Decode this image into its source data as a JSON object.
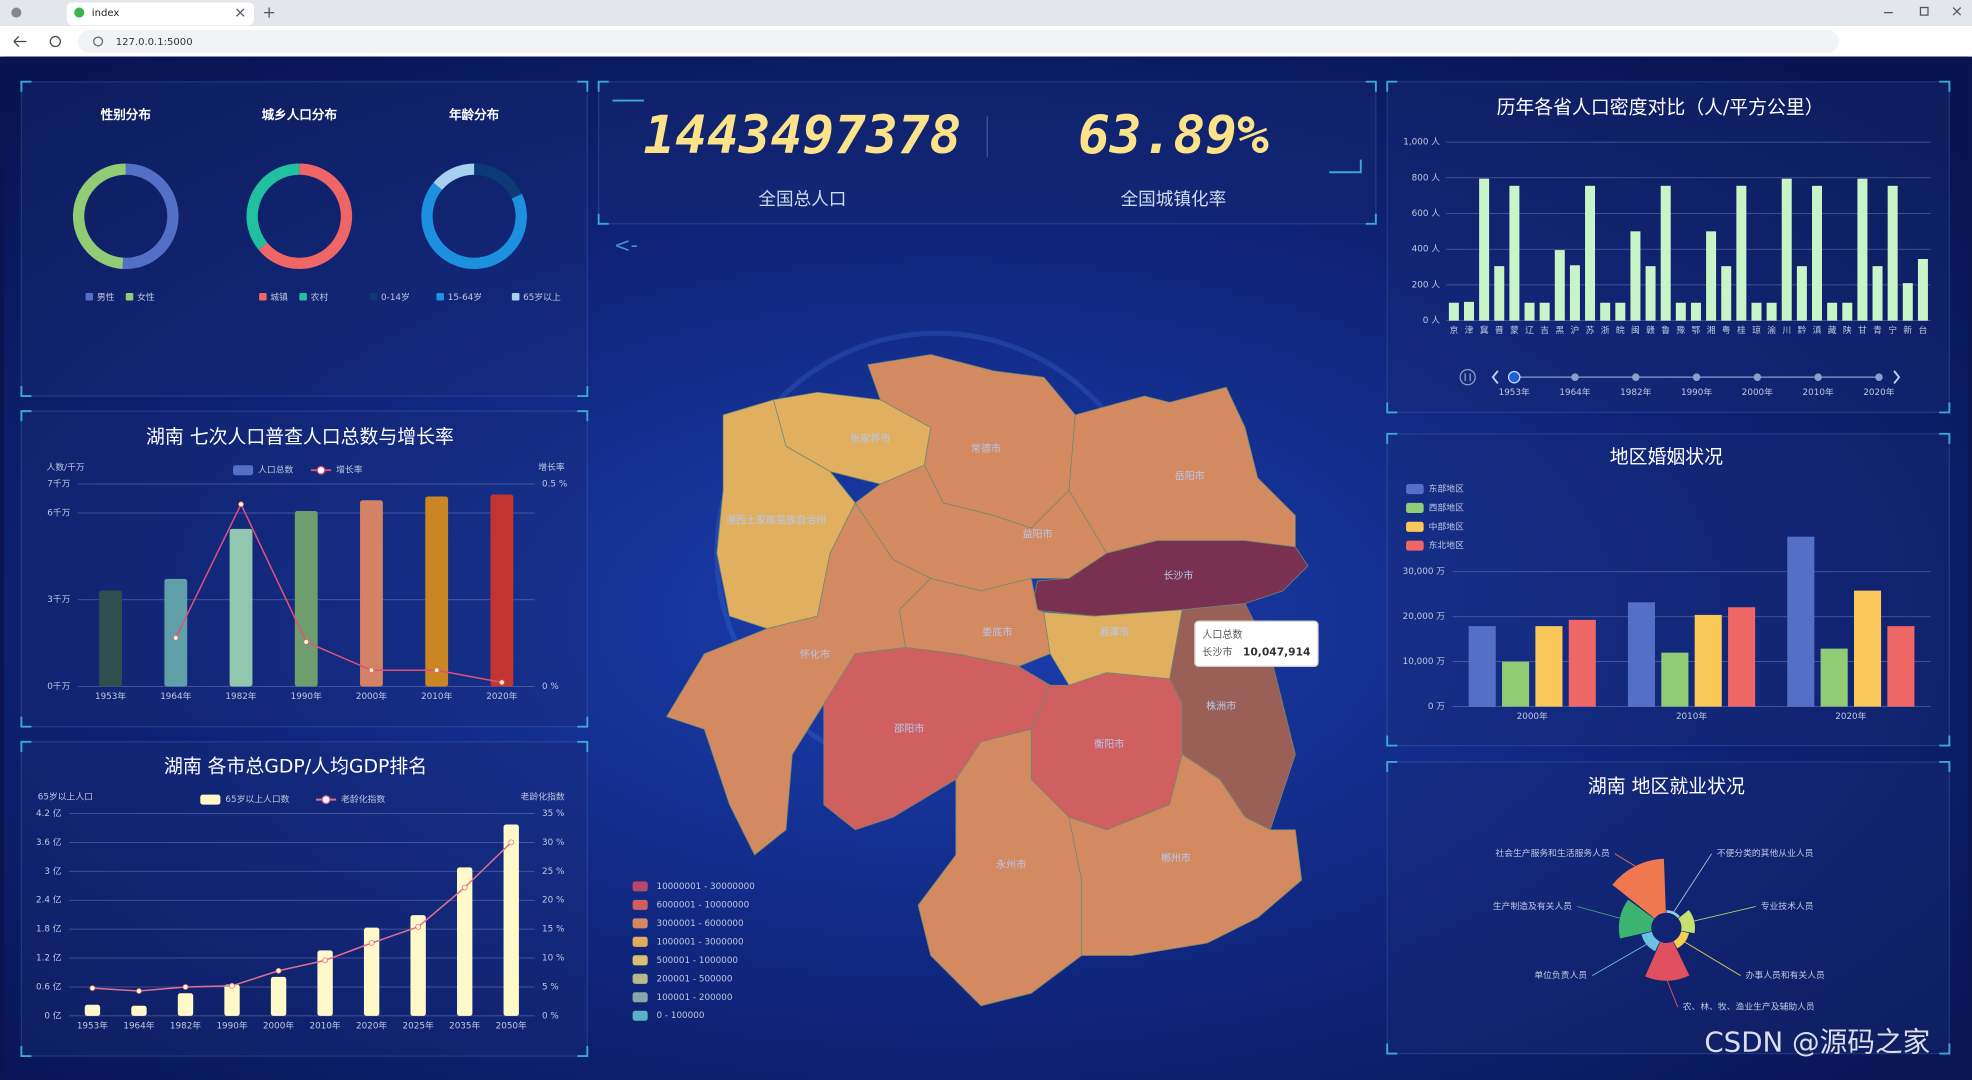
{
  "browser": {
    "tab_title": "index",
    "url": "127.0.0.1:5000"
  },
  "kpis": [
    {
      "value": 1443497378,
      "label": "全国总人口"
    },
    {
      "value": {
        "value": 63.89,
        "label": "63.89%"
      },
      "label": "全国城镇化率"
    }
  ],
  "back_button": "<-",
  "watermark": "CSDN @源码之家",
  "chart_data": [
    {
      "type": "pie",
      "title": "性别分布",
      "categories": [
        "男性",
        "女性"
      ],
      "values": [
        51,
        49
      ],
      "colors": [
        "#5470c6",
        "#91cc75"
      ]
    },
    {
      "type": "pie",
      "title": "城乡人口分布",
      "categories": [
        "城镇",
        "农村"
      ],
      "values": [
        64,
        36
      ],
      "colors": [
        "#ee6666",
        "#20c0a0"
      ]
    },
    {
      "type": "pie",
      "title": "年龄分布",
      "categories": [
        "0-14岁",
        "15-64岁",
        "65岁以上"
      ],
      "values": [
        18,
        68,
        14
      ],
      "colors": [
        "#0b3a75",
        "#1e90e0",
        "#a8d0f0"
      ]
    },
    {
      "type": "combo",
      "title": "湖南 七次人口普查人口总数与增长率",
      "categories": [
        "1953年",
        "1964年",
        "1982年",
        "1990年",
        "2000年",
        "2010年",
        "2020年"
      ],
      "ylabel": "人数/千万",
      "y2label": "增长率",
      "ylim": [
        0,
        7
      ],
      "yticks": [
        {
          "value": 0,
          "label": "0千万"
        },
        {
          "value": 3,
          "label": "3千万"
        },
        {
          "value": 6,
          "label": "6千万"
        },
        {
          "value": 7,
          "label": "7千万"
        }
      ],
      "y2lim": [
        0,
        0.5
      ],
      "y2ticks": [
        {
          "value": 0,
          "label": "0 %"
        },
        {
          "value": 0.5,
          "label": "0.5 %"
        }
      ],
      "grid": true,
      "series": [
        {
          "name": "人口总数",
          "type": "bar",
          "color": "#5470c6",
          "bar_colors": [
            "#2f4f4f",
            "#61a0a8",
            "#91c7ae",
            "#6e9e6e",
            "#d48265",
            "#ca8622",
            "#c23531"
          ],
          "values": [
            3.32,
            3.72,
            5.45,
            6.07,
            6.44,
            6.57,
            6.64
          ]
        },
        {
          "name": "增长率",
          "type": "line",
          "axis": "y2",
          "color": "#e0507a",
          "values": [
            null,
            0.12,
            0.45,
            0.11,
            0.04,
            0.04,
            0.01
          ]
        }
      ]
    },
    {
      "type": "combo",
      "title": "湖南 各市总GDP/人均GDP排名",
      "categories": [
        "1953年",
        "1964年",
        "1982年",
        "1990年",
        "2000年",
        "2010年",
        "2020年",
        "2025年",
        "2035年",
        "2050年"
      ],
      "ylabel": "65岁以上人口",
      "y2label": "老龄化指数",
      "ylim": [
        0,
        4.2
      ],
      "yticks": [
        {
          "value": 0,
          "label": "0 亿"
        },
        {
          "value": 0.6,
          "label": "0.6 亿"
        },
        {
          "value": 1.2,
          "label": "1.2 亿"
        },
        {
          "value": 1.8,
          "label": "1.8 亿"
        },
        {
          "value": 2.4,
          "label": "2.4 亿"
        },
        {
          "value": 3,
          "label": "3 亿"
        },
        {
          "value": 3.6,
          "label": "3.6 亿"
        },
        {
          "value": 4.2,
          "label": "4.2 亿"
        }
      ],
      "y2lim": [
        0,
        35
      ],
      "y2ticks": [
        {
          "value": 0,
          "label": "0 %"
        },
        {
          "value": 5,
          "label": "5 %"
        },
        {
          "value": 10,
          "label": "10 %"
        },
        {
          "value": 15,
          "label": "15 %"
        },
        {
          "value": 20,
          "label": "20 %"
        },
        {
          "value": 25,
          "label": "25 %"
        },
        {
          "value": 30,
          "label": "30 %"
        },
        {
          "value": 35,
          "label": "35 %"
        }
      ],
      "grid": true,
      "series": [
        {
          "name": "65岁以上人口数",
          "type": "bar",
          "color": "#fff8c8",
          "values": [
            0.23,
            0.21,
            0.47,
            0.65,
            0.81,
            1.36,
            1.83,
            2.09,
            3.08,
            3.97
          ]
        },
        {
          "name": "老龄化指数",
          "type": "line",
          "axis": "y2",
          "color": "#e07090",
          "values": [
            4.8,
            4.3,
            5.0,
            5.2,
            7.8,
            9.6,
            12.6,
            15.4,
            22.2,
            30
          ]
        }
      ]
    },
    {
      "type": "map",
      "regions": [
        "张家界市",
        "常德市",
        "岳阳市",
        "湘西土家族苗族自治州",
        "益阳市",
        "长沙市",
        "娄底市",
        "湘潭市",
        "怀化市",
        "邵阳市",
        "株洲市",
        "衡阳市",
        "永州市",
        "郴州市"
      ],
      "legend": [
        {
          "label": "10000001 - 30000000",
          "color": "#b8476b"
        },
        {
          "label": "6000001 - 10000000",
          "color": "#d06060"
        },
        {
          "label": "3000001 - 6000000",
          "color": "#d48a60"
        },
        {
          "label": "1000001 - 3000000",
          "color": "#e0aa60"
        },
        {
          "label": "500001 - 1000000",
          "color": "#d8c070"
        },
        {
          "label": "200001 - 500000",
          "color": "#b8b888"
        },
        {
          "label": "100001 - 200000",
          "color": "#88a8a8"
        },
        {
          "label": "0 - 100000",
          "color": "#5ab0c8"
        }
      ],
      "tooltip": {
        "title": "人口总数",
        "region": "长沙市",
        "value": {
          "value": 10047914,
          "label": "10,047,914"
        }
      }
    },
    {
      "type": "bar",
      "title": "历年各省人口密度对比（人/平方公里）",
      "categories": [
        "京",
        "津",
        "冀",
        "晋",
        "蒙",
        "辽",
        "吉",
        "黑",
        "沪",
        "苏",
        "浙",
        "皖",
        "闽",
        "赣",
        "鲁",
        "豫",
        "鄂",
        "湘",
        "粤",
        "桂",
        "琼",
        "渝",
        "川",
        "黔",
        "滇",
        "藏",
        "陕",
        "甘",
        "青",
        "宁",
        "新",
        "台"
      ],
      "values": [
        100,
        105,
        795,
        305,
        755,
        100,
        100,
        395,
        310,
        755,
        100,
        100,
        500,
        305,
        755,
        100,
        100,
        500,
        305,
        755,
        100,
        100,
        795,
        305,
        755,
        100,
        100,
        795,
        305,
        755,
        210,
        345
      ],
      "color": "#c8f5c8",
      "ylim": [
        0,
        1000
      ],
      "yticks": [
        {
          "value": 0,
          "label": "0 人"
        },
        {
          "value": 200,
          "label": "200 人"
        },
        {
          "value": 400,
          "label": "400 人"
        },
        {
          "value": 600,
          "label": "600 人"
        },
        {
          "value": 800,
          "label": "800 人"
        },
        {
          "value": 1000,
          "label": "1,000 人"
        }
      ],
      "grid": true,
      "timeline": [
        "1953年",
        "1964年",
        "1982年",
        "1990年",
        "2000年",
        "2010年",
        "2020年"
      ]
    },
    {
      "type": "bar",
      "title": "地区婚姻状况",
      "categories": [
        "2000年",
        "2010年",
        "2020年"
      ],
      "ylim": [
        0,
        40000
      ],
      "yticks": [
        {
          "value": 0,
          "label": "0 万"
        },
        {
          "value": 10000,
          "label": "10,000 万"
        },
        {
          "value": 20000,
          "label": "20,000 万"
        },
        {
          "value": 30000,
          "label": "30,000 万"
        }
      ],
      "grid": true,
      "legend": "top-left",
      "series": [
        {
          "name": "东部地区",
          "color": "#5470c6",
          "values": [
            17900,
            23200,
            37800
          ]
        },
        {
          "name": "西部地区",
          "color": "#91cc75",
          "values": [
            10000,
            12000,
            12900
          ]
        },
        {
          "name": "中部地区",
          "color": "#fac858",
          "values": [
            17900,
            20400,
            25800
          ]
        },
        {
          "name": "东北地区",
          "color": "#ee6666",
          "values": [
            19300,
            22100,
            17900
          ]
        }
      ]
    },
    {
      "type": "rose",
      "title": "湖南 地区就业状况",
      "categories": [
        "不便分类的其他从业人员",
        "专业技术人员",
        "办事人员和有关人员",
        "农、林、牧、渔业生产及辅助人员",
        "单位负责人员",
        "生产制造及有关人员",
        "社会生产服务和生活服务人员"
      ],
      "values": [
        2,
        10,
        6,
        28,
        8,
        24,
        40
      ],
      "colors": [
        "#9ad0e0",
        "#c8e070",
        "#f0d050",
        "#e05060",
        "#6cc0e0",
        "#3cb371",
        "#f07850"
      ]
    }
  ]
}
